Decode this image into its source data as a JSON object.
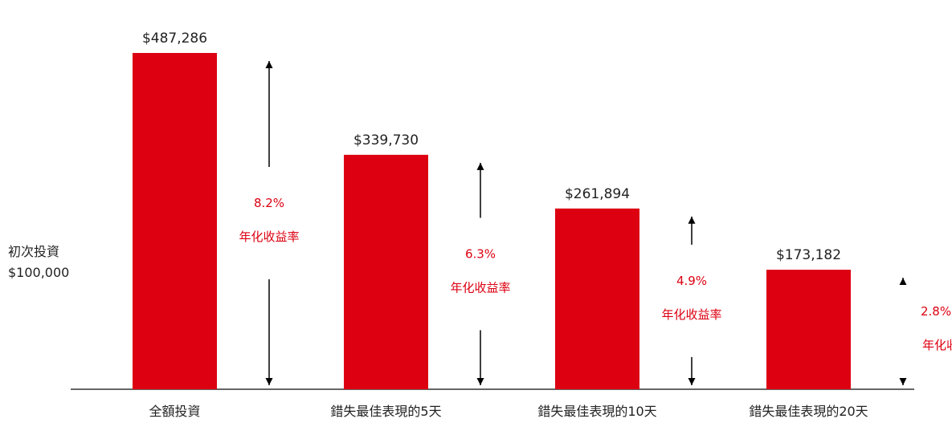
{
  "initial": {
    "label": "初次投資",
    "amount": "$100,000"
  },
  "colors": {
    "bar": "#DC0011",
    "annotation": "#DC0011",
    "text": "#222222",
    "axis": "#666666",
    "arrow": "#000000"
  },
  "chart_data": {
    "type": "bar",
    "categories": [
      "全額投資",
      "錯失最佳表現的5天",
      "錯失最佳表現的10天",
      "錯失最佳表現的20天"
    ],
    "values": [
      487286,
      339730,
      261894,
      173182
    ],
    "value_labels": [
      "$487,286",
      "$339,730",
      "$261,894",
      "$173,182"
    ],
    "annualized_returns": [
      "8.2%",
      "6.3%",
      "4.9%",
      "2.8%"
    ],
    "annualized_return_label": "年化收益率",
    "title": "",
    "xlabel": "",
    "ylabel": "",
    "ylim": [
      0,
      487286
    ],
    "grid": false,
    "legend": "none"
  }
}
